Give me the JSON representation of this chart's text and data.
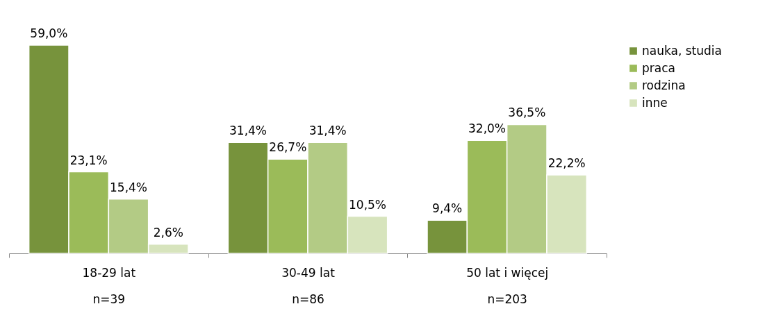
{
  "chart_data": {
    "type": "bar",
    "categories": [
      "18-29 lat\nn=39",
      "30-49 lat\nn=86",
      "50 lat i więcej\nn=203"
    ],
    "series": [
      {
        "name": "nauka, studia",
        "color": "#77933c",
        "values": [
          59.0,
          31.4,
          9.4
        ],
        "value_labels": [
          "59,0%",
          "31,4%",
          "9,4%"
        ]
      },
      {
        "name": "praca",
        "color": "#9bbb59",
        "values": [
          23.1,
          26.7,
          32.0
        ],
        "value_labels": [
          "23,1%",
          "26,7%",
          "32,0%"
        ]
      },
      {
        "name": "rodzina",
        "color": "#b3cb85",
        "values": [
          15.4,
          31.4,
          36.5
        ],
        "value_labels": [
          "15,4%",
          "31,4%",
          "36,5%"
        ]
      },
      {
        "name": "inne",
        "color": "#d7e4bd",
        "values": [
          2.6,
          10.5,
          22.2
        ],
        "value_labels": [
          "2,6%",
          "10,5%",
          "22,2%"
        ]
      }
    ],
    "legend": "top right",
    "tick_labels": "x"
  }
}
